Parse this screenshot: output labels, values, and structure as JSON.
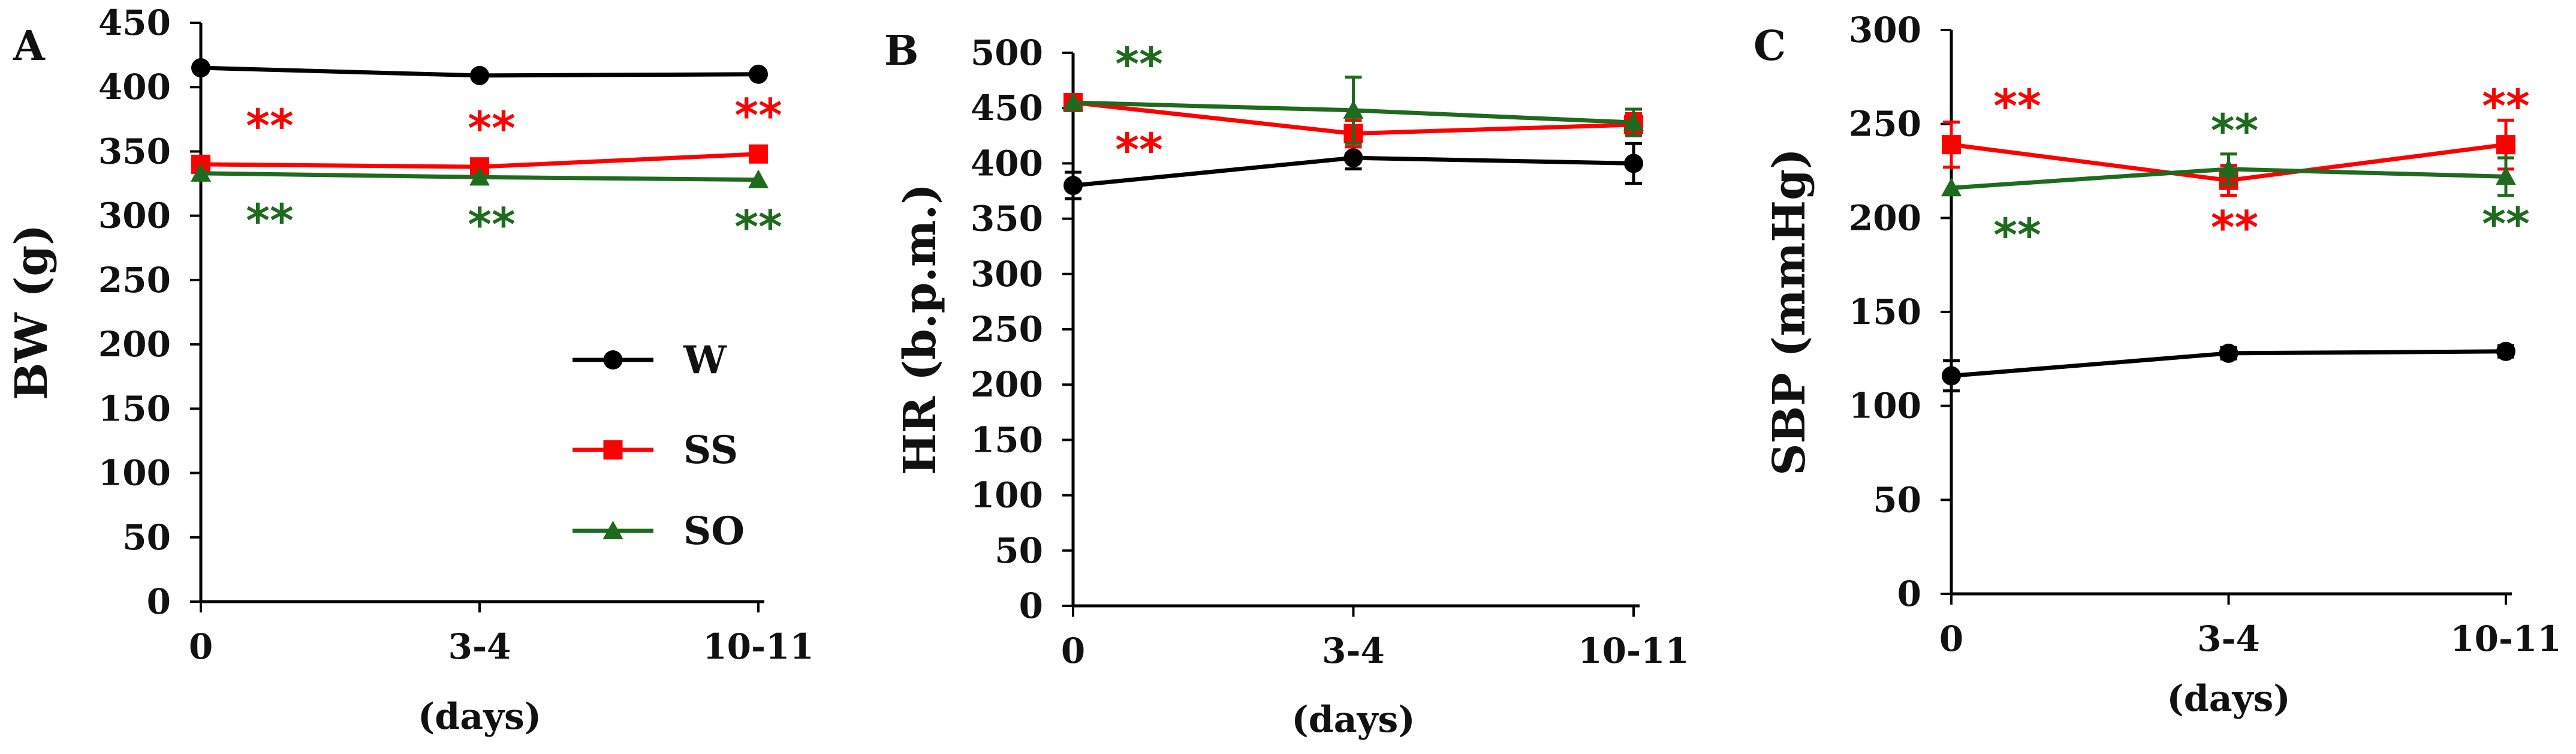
{
  "chart_data": [
    {
      "panel_label": "A",
      "type": "line",
      "ylabel": "BW (g)",
      "xlabel": "(days)",
      "categories": [
        "0",
        "3-4",
        "10-11"
      ],
      "ylim": [
        0,
        450
      ],
      "yticks": [
        0,
        50,
        100,
        150,
        200,
        250,
        300,
        350,
        400,
        450
      ],
      "legend": {
        "placement": "lower-middle"
      },
      "series": [
        {
          "name": "W",
          "color": "#000000",
          "marker": "circle",
          "values": [
            415,
            409,
            410
          ],
          "errors": [
            0,
            0,
            0
          ]
        },
        {
          "name": "SS",
          "color": "#ff0000",
          "marker": "square",
          "values": [
            340,
            338,
            348
          ],
          "errors": [
            6,
            6,
            6
          ]
        },
        {
          "name": "SO",
          "color": "#1e6b1e",
          "marker": "triangle",
          "values": [
            333,
            330,
            328
          ],
          "errors": [
            0,
            0,
            0
          ]
        }
      ],
      "annotations": [
        {
          "text": "**",
          "series": "SS",
          "x_index": 0,
          "side": "above"
        },
        {
          "text": "**",
          "series": "SS",
          "x_index": 1,
          "side": "above"
        },
        {
          "text": "**",
          "series": "SS",
          "x_index": 2,
          "side": "above"
        },
        {
          "text": "**",
          "series": "SO",
          "x_index": 0,
          "side": "below"
        },
        {
          "text": "**",
          "series": "SO",
          "x_index": 1,
          "side": "below"
        },
        {
          "text": "**",
          "series": "SO",
          "x_index": 2,
          "side": "below"
        }
      ]
    },
    {
      "panel_label": "B",
      "type": "line",
      "ylabel": "HR (b.p.m.)",
      "xlabel": "(days)",
      "categories": [
        "0",
        "3-4",
        "10-11"
      ],
      "ylim": [
        0,
        500
      ],
      "yticks": [
        0,
        50,
        100,
        150,
        200,
        250,
        300,
        350,
        400,
        450,
        500
      ],
      "series": [
        {
          "name": "W",
          "color": "#000000",
          "marker": "circle",
          "values": [
            380,
            405,
            400
          ],
          "errors": [
            12,
            10,
            18
          ]
        },
        {
          "name": "SS",
          "color": "#ff0000",
          "marker": "square",
          "values": [
            455,
            427,
            435
          ],
          "errors": [
            5,
            12,
            10
          ]
        },
        {
          "name": "SO",
          "color": "#1e6b1e",
          "marker": "triangle",
          "values": [
            455,
            448,
            437
          ],
          "errors": [
            0,
            30,
            12
          ]
        }
      ],
      "annotations": [
        {
          "text": "**",
          "series": "SO",
          "x_index": 0,
          "side": "above"
        },
        {
          "text": "**",
          "series": "SS",
          "x_index": 0,
          "side": "below"
        }
      ]
    },
    {
      "panel_label": "C",
      "type": "line",
      "ylabel": "SBP (mmHg)",
      "xlabel": "(days)",
      "categories": [
        "0",
        "3-4",
        "10-11"
      ],
      "ylim": [
        0,
        300
      ],
      "yticks": [
        0,
        50,
        100,
        150,
        200,
        250,
        300
      ],
      "series": [
        {
          "name": "W",
          "color": "#000000",
          "marker": "circle",
          "values": [
            116,
            128,
            129
          ],
          "errors": [
            8,
            3,
            3
          ]
        },
        {
          "name": "SS",
          "color": "#ff0000",
          "marker": "square",
          "values": [
            239,
            220,
            239
          ],
          "errors": [
            12,
            8,
            13
          ]
        },
        {
          "name": "SO",
          "color": "#1e6b1e",
          "marker": "triangle",
          "values": [
            216,
            226,
            222
          ],
          "errors": [
            0,
            8,
            10
          ]
        }
      ],
      "annotations": [
        {
          "text": "**",
          "series": "SS",
          "x_index": 0,
          "side": "above"
        },
        {
          "text": "**",
          "series": "SO",
          "x_index": 0,
          "side": "below"
        },
        {
          "text": "**",
          "series": "SO",
          "x_index": 1,
          "side": "above"
        },
        {
          "text": "**",
          "series": "SS",
          "x_index": 1,
          "side": "below"
        },
        {
          "text": "**",
          "series": "SS",
          "x_index": 2,
          "side": "above"
        },
        {
          "text": "**",
          "series": "SO",
          "x_index": 2,
          "side": "below"
        }
      ]
    }
  ]
}
